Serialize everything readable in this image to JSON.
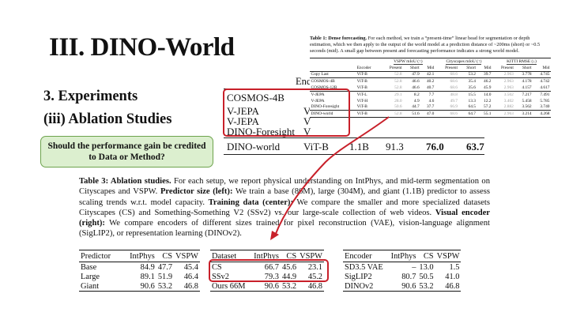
{
  "slide": {
    "title": "III. DINO-World",
    "subtitle1": "3. Experiments",
    "subtitle2": "(iii) Ablation Studies",
    "callout": "Should the performance gain be credited to Data or Method?"
  },
  "background_table": {
    "enc_header": "Enc",
    "rows": [
      {
        "name": "COSMOS-4B",
        "enc": ""
      },
      {
        "name": "V-JEPA",
        "enc": "V"
      },
      {
        "name": "V-JEPA",
        "enc": "V"
      },
      {
        "name": "DINO-Foresight",
        "enc": "V"
      }
    ],
    "final_row": {
      "name": "DINO-world",
      "enc": "ViT-B",
      "size": "1.1B",
      "v1": "91.3",
      "v2": "76.0",
      "v3": "63.7"
    }
  },
  "table1": {
    "caption_bold": "Table 1: Dense forecasting.",
    "caption_rest": " For each method, we train a “present-time” linear head for segmentation or depth estimation, which we then apply to the output of the world model at a prediction distance of ~200ms (short) or ~0.5 seconds (mid). A small gap between present and forecasting performance indicates a strong world model.",
    "groups": [
      "VSPW mIoU (↑)",
      "Cityscapes mIoU (↑)",
      "KITTI RMSE (↓)"
    ],
    "columns": [
      "Encoder",
      "Present",
      "Short",
      "Mid",
      "Present",
      "Short",
      "Mid",
      "Present",
      "Short",
      "Mid"
    ],
    "rows": [
      [
        "Copy Last",
        "ViT-B",
        "52.8",
        "47.9",
        "42.1",
        "68.6",
        "53.2",
        "39.7",
        "2.963",
        "3.778",
        "4.745"
      ],
      [
        "COSMOS-4B",
        "ViT-B",
        "52.8",
        "46.6",
        "40.2",
        "68.6",
        "35.4",
        "46.2",
        "2.963",
        "4.178",
        "4.742"
      ],
      [
        "COSMOS-12B",
        "ViT-B",
        "52.8",
        "46.6",
        "40.7",
        "68.6",
        "35.6",
        "45.9",
        "2.963",
        "4.157",
        "4.617"
      ],
      [
        "V-JEPA",
        "ViT-L",
        "29.1",
        "8.2",
        "7.7",
        "48.8",
        "15.5",
        "14.0",
        "3.502",
        "7.217",
        "7.491"
      ],
      [
        "V-JEPA",
        "ViT-H",
        "28.0",
        "4.9",
        "4.6",
        "49.7",
        "13.3",
        "12.2",
        "3.402",
        "5.458",
        "5.785"
      ],
      [
        "DINO-Foresight",
        "ViT-B",
        "50.6",
        "44.7",
        "37.7",
        "66.9",
        "64.5",
        "57.2",
        "2.882",
        "3.562",
        "3.740"
      ],
      [
        "DINO-world",
        "ViT-B",
        "52.8",
        "51.6",
        "47.0",
        "68.6",
        "64.7",
        "55.1",
        "2.963",
        "3.214",
        "4.268"
      ]
    ]
  },
  "table3_caption": {
    "b1": "Table 3: Ablation studies.",
    "t1": " For each setup, we report physical understanding on IntPhys, and mid-term segmentation on Cityscapes and VSPW. ",
    "b2": "Predictor size (left):",
    "t2": " We train a base (86M), large (304M), and giant (1.1B) predictor to assess scaling trends w.r.t. model capacity. ",
    "b3": "Training data (center):",
    "t3": " We compare the smaller and more specialized datasets Cityscapes (CS) and Something-Something V2 (SSv2) vs. our large-scale collection of web videos. ",
    "b4": "Visual encoder (right):",
    "t4": " We compare encoders of different sizes trained for pixel reconstruction (VAE), vision-language alignment (SigLIP2), or representation learning (DINOv2)."
  },
  "predictor_table": {
    "headers": [
      "Predictor",
      "IntPhys",
      "CS",
      "VSPW"
    ],
    "rows": [
      [
        "Base",
        "84.9",
        "47.7",
        "45.4"
      ],
      [
        "Large",
        "89.1",
        "51.9",
        "46.4"
      ],
      [
        "Giant",
        "90.6",
        "53.2",
        "46.8"
      ]
    ]
  },
  "dataset_table": {
    "headers": [
      "Dataset",
      "IntPhys",
      "CS",
      "VSPW"
    ],
    "rows": [
      [
        "CS",
        "66.7",
        "45.6",
        "23.1"
      ],
      [
        "SSv2",
        "79.3",
        "44.9",
        "45.2"
      ],
      [
        "Ours 66M",
        "90.6",
        "53.2",
        "46.8"
      ]
    ]
  },
  "encoder_table": {
    "headers": [
      "Encoder",
      "IntPhys",
      "CS",
      "VSPW"
    ],
    "rows": [
      [
        "SD3.5 VAE",
        "–",
        "13.0",
        "1.5"
      ],
      [
        "SigLIP2",
        "80.7",
        "50.5",
        "41.0"
      ],
      [
        "DINOv2",
        "90.6",
        "53.2",
        "46.8"
      ]
    ]
  },
  "colors": {
    "highlight": "#c8202a",
    "callout_fill": "#dcefcf",
    "callout_border": "#6da34d"
  }
}
